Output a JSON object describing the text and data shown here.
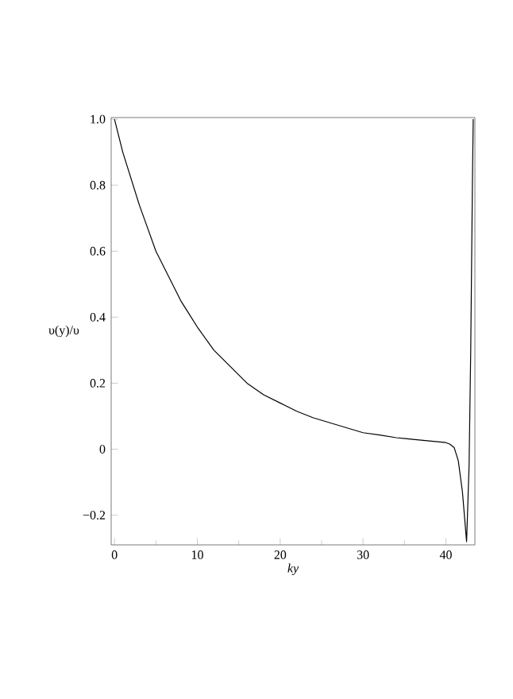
{
  "chart_data": {
    "type": "line",
    "xlabel": "*ky*",
    "ylabel": "υ(y)/υ",
    "x": [
      0,
      1,
      2,
      3,
      4,
      5,
      6,
      7,
      8,
      9,
      10,
      12,
      14,
      16,
      18,
      20,
      22,
      24,
      26,
      28,
      30,
      32,
      34,
      36,
      38,
      40,
      40.5,
      41,
      41.5,
      42,
      42.3,
      42.5,
      42.8,
      43,
      43.2,
      43.3
    ],
    "series": [
      {
        "color": "#000000",
        "values": [
          1.0,
          0.9,
          0.82,
          0.74,
          0.67,
          0.6,
          0.55,
          0.5,
          0.45,
          0.41,
          0.37,
          0.3,
          0.25,
          0.2,
          0.165,
          0.14,
          0.115,
          0.095,
          0.08,
          0.065,
          0.05,
          0.043,
          0.035,
          0.03,
          0.025,
          0.02,
          0.015,
          0.005,
          -0.035,
          -0.13,
          -0.22,
          -0.28,
          -0.05,
          0.3,
          0.8,
          1.0
        ]
      }
    ],
    "xlim": [
      -0.4,
      43.5
    ],
    "ylim": [
      -0.29,
      1.005
    ],
    "xticks": [
      0,
      10,
      20,
      30,
      40
    ],
    "yticks": [
      {
        "value": -0.2,
        "label": "−0.2"
      },
      0,
      0.2,
      0.4,
      0.6,
      0.8,
      {
        "value": 1.0,
        "label": "1.0"
      }
    ],
    "grid": false,
    "marker": "none",
    "line_style": "solid"
  }
}
